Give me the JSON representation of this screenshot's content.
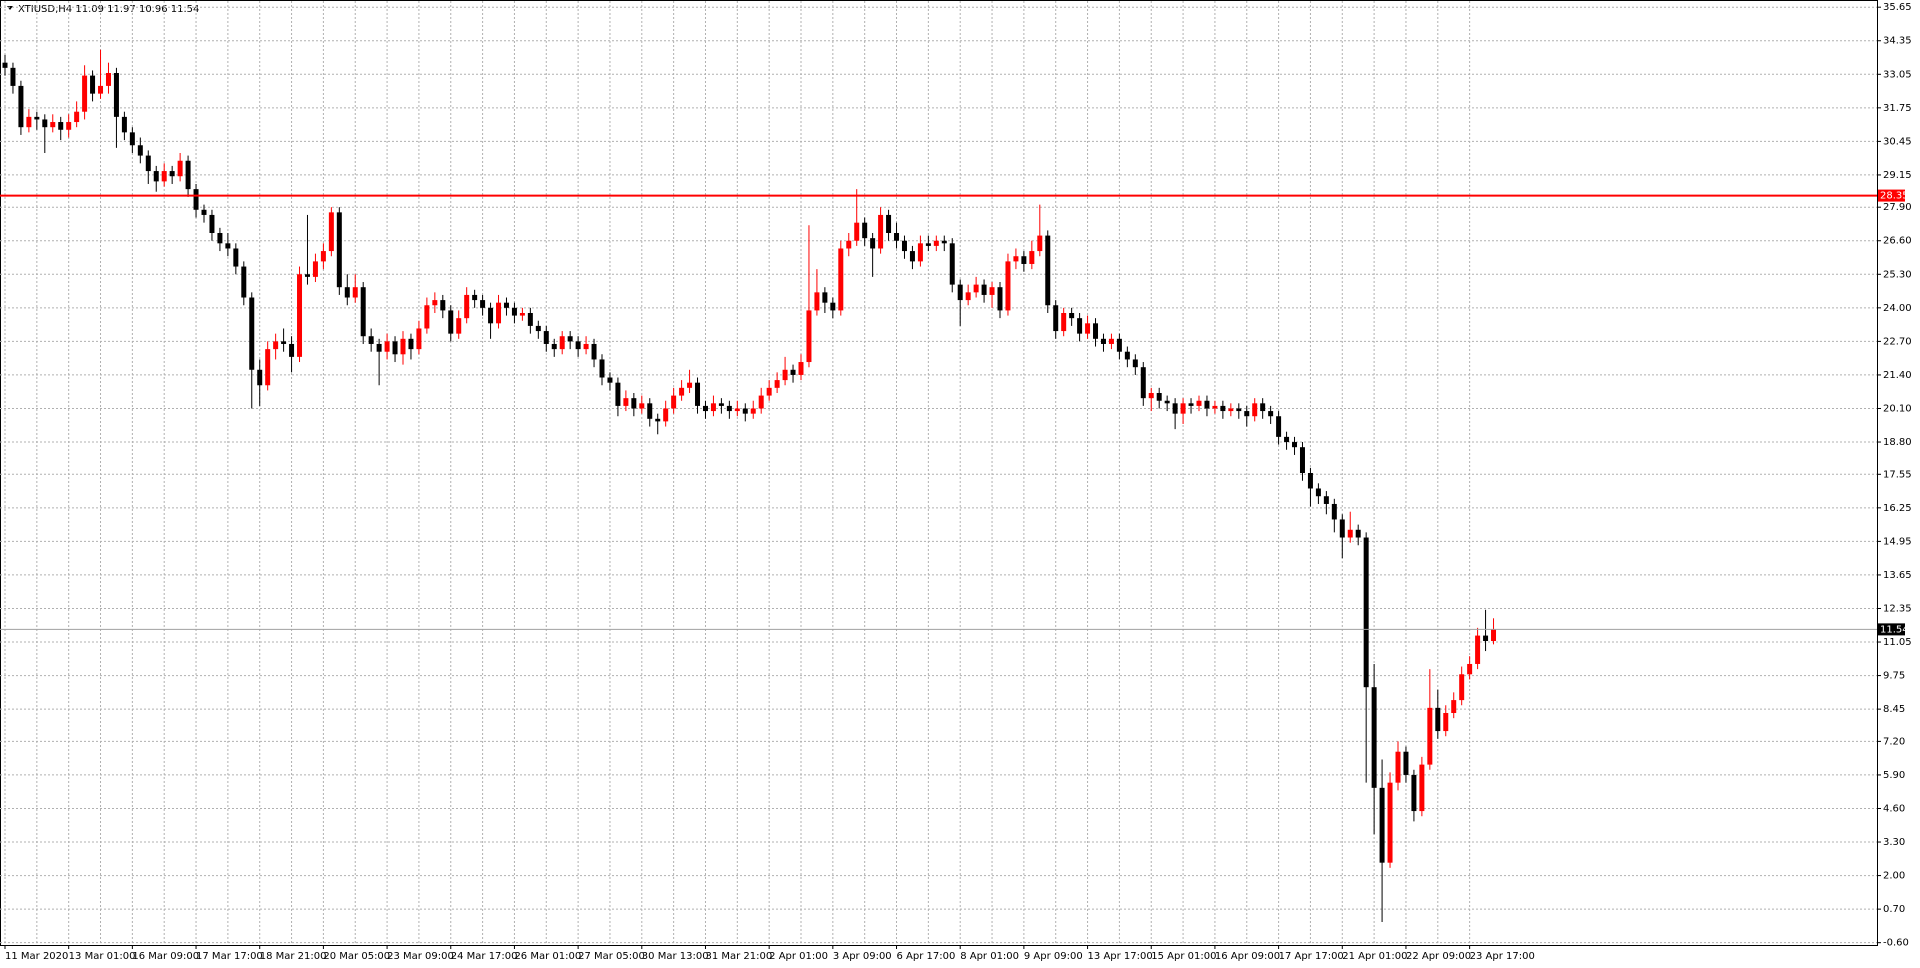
{
  "chart_data": {
    "type": "candlestick",
    "title": "XTIUSD,H4  11.09 11.97 10.96 11.54",
    "ylim": [
      -0.69,
      35.89
    ],
    "yticks": [
      35.65,
      34.35,
      33.05,
      31.75,
      30.45,
      29.15,
      {
        "value": 27.9,
        "label": "27.90"
      },
      {
        "value": 26.6,
        "label": "26.60"
      },
      {
        "value": 25.3,
        "label": "25.30"
      },
      {
        "value": 24,
        "label": "24.00"
      },
      {
        "value": 22.7,
        "label": "22.70"
      },
      {
        "value": 21.4,
        "label": "21.40"
      },
      {
        "value": 20.1,
        "label": "20.10"
      },
      {
        "value": 18.8,
        "label": "18.80"
      },
      17.55,
      16.25,
      14.95,
      13.65,
      12.35,
      11.05,
      9.75,
      8.45,
      {
        "value": 7.2,
        "label": "7.20"
      },
      {
        "value": 5.9,
        "label": "5.90"
      },
      {
        "value": 4.6,
        "label": "4.60"
      },
      {
        "value": 3.3,
        "label": "3.30"
      },
      {
        "value": 2,
        "label": "2.00"
      },
      {
        "value": 0.7,
        "label": "0.70"
      },
      {
        "value": -0.6,
        "label": "-0.60"
      }
    ],
    "grid": true,
    "bull_color": "#ff0000",
    "bear_color": "#000000",
    "doji_color": "#00a000",
    "hlines": [
      {
        "value": 28.35,
        "color": "#ff0000"
      },
      {
        "value": 11.54,
        "color": "#a0a0a0"
      }
    ],
    "categories": [
      "11 Mar 2020",
      null,
      null,
      null,
      null,
      null,
      null,
      null,
      "13 Mar 01:00",
      null,
      null,
      null,
      null,
      null,
      null,
      null,
      "16 Mar 09:00",
      null,
      null,
      null,
      null,
      null,
      null,
      null,
      "17 Mar 17:00",
      null,
      null,
      null,
      null,
      null,
      null,
      null,
      "18 Mar 21:00",
      null,
      null,
      null,
      null,
      null,
      null,
      null,
      "20 Mar 05:00",
      null,
      null,
      null,
      null,
      null,
      null,
      null,
      "23 Mar 09:00",
      null,
      null,
      null,
      null,
      null,
      null,
      null,
      "24 Mar 17:00",
      null,
      null,
      null,
      null,
      null,
      null,
      null,
      "26 Mar 01:00",
      null,
      null,
      null,
      null,
      null,
      null,
      null,
      "27 Mar 05:00",
      null,
      null,
      null,
      null,
      null,
      null,
      null,
      "30 Mar 13:00",
      null,
      null,
      null,
      null,
      null,
      null,
      null,
      "31 Mar 21:00",
      null,
      null,
      null,
      null,
      null,
      null,
      null,
      "2 Apr 01:00",
      null,
      null,
      null,
      null,
      null,
      null,
      null,
      "3 Apr 09:00",
      null,
      null,
      null,
      null,
      null,
      null,
      null,
      "6 Apr 17:00",
      null,
      null,
      null,
      null,
      null,
      null,
      null,
      "8 Apr 01:00",
      null,
      null,
      null,
      null,
      null,
      null,
      null,
      "9 Apr 09:00",
      null,
      null,
      null,
      null,
      null,
      null,
      null,
      "13 Apr 17:00",
      null,
      null,
      null,
      null,
      null,
      null,
      null,
      "15 Apr 01:00",
      null,
      null,
      null,
      null,
      null,
      null,
      null,
      "16 Apr 09:00",
      null,
      null,
      null,
      null,
      null,
      null,
      null,
      "17 Apr 17:00",
      null,
      null,
      null,
      null,
      null,
      null,
      null,
      "21 Apr 01:00",
      null,
      null,
      null,
      null,
      null,
      null,
      null,
      "22 Apr 09:00",
      null,
      null,
      null,
      null,
      null,
      null,
      null,
      "23 Apr 17:00",
      null,
      null,
      null
    ],
    "candles": [
      [
        33.5,
        33.8,
        33.0,
        33.3
      ],
      [
        33.3,
        33.5,
        32.3,
        32.6
      ],
      [
        32.6,
        32.8,
        30.7,
        31.0
      ],
      [
        31.0,
        31.7,
        30.8,
        31.4
      ],
      [
        31.4,
        31.6,
        30.9,
        31.3
      ],
      [
        31.3,
        31.5,
        30.0,
        31.0
      ],
      [
        31.0,
        31.5,
        30.8,
        31.2
      ],
      [
        31.2,
        31.4,
        30.5,
        30.9
      ],
      [
        30.9,
        31.5,
        30.6,
        31.2
      ],
      [
        31.2,
        32.0,
        31.0,
        31.6
      ],
      [
        31.6,
        33.4,
        31.3,
        33.0
      ],
      [
        33.0,
        33.2,
        32.0,
        32.3
      ],
      [
        32.3,
        34.0,
        32.1,
        32.6
      ],
      [
        32.6,
        33.5,
        32.3,
        33.1
      ],
      [
        33.1,
        33.3,
        30.2,
        31.4
      ],
      [
        31.4,
        31.6,
        30.5,
        30.8
      ],
      [
        30.8,
        31.0,
        30.0,
        30.3
      ],
      [
        30.3,
        30.6,
        29.6,
        29.9
      ],
      [
        29.9,
        30.1,
        28.8,
        29.3
      ],
      [
        29.3,
        29.5,
        28.5,
        28.9
      ],
      [
        28.9,
        29.6,
        28.7,
        29.3
      ],
      [
        29.3,
        29.5,
        28.8,
        29.1
      ],
      [
        29.1,
        30.0,
        28.9,
        29.7
      ],
      [
        29.7,
        29.9,
        28.3,
        28.6
      ],
      [
        28.6,
        28.8,
        27.5,
        27.8
      ],
      [
        27.8,
        28.0,
        27.3,
        27.6
      ],
      [
        27.6,
        27.8,
        26.6,
        26.9
      ],
      [
        26.9,
        27.1,
        26.2,
        26.5
      ],
      [
        26.5,
        26.9,
        26.0,
        26.3
      ],
      [
        26.3,
        26.5,
        25.3,
        25.6
      ],
      [
        25.6,
        25.8,
        24.1,
        24.4
      ],
      [
        24.4,
        24.6,
        20.1,
        21.6
      ],
      [
        21.6,
        22.0,
        20.2,
        21.0
      ],
      [
        21.0,
        22.7,
        20.8,
        22.4
      ],
      [
        22.4,
        23.0,
        22.0,
        22.7
      ],
      [
        22.7,
        23.2,
        22.3,
        22.6
      ],
      [
        22.6,
        22.9,
        21.5,
        22.1
      ],
      [
        22.1,
        25.6,
        21.9,
        25.3
      ],
      [
        25.3,
        27.6,
        24.9,
        25.2
      ],
      [
        25.2,
        26.1,
        25.0,
        25.8
      ],
      [
        25.8,
        26.5,
        25.5,
        26.2
      ],
      [
        26.2,
        27.9,
        26.0,
        27.7
      ],
      [
        27.7,
        27.9,
        24.5,
        24.8
      ],
      [
        24.8,
        25.3,
        24.1,
        24.4
      ],
      [
        24.4,
        25.3,
        24.2,
        24.8
      ],
      [
        24.8,
        25.0,
        22.6,
        22.9
      ],
      [
        22.9,
        23.2,
        22.3,
        22.6
      ],
      [
        22.6,
        22.8,
        21.0,
        22.3
      ],
      [
        22.3,
        23.0,
        22.0,
        22.7
      ],
      [
        22.7,
        22.9,
        21.9,
        22.2
      ],
      [
        22.2,
        23.1,
        21.8,
        22.8
      ],
      [
        22.8,
        23.0,
        22.0,
        22.4
      ],
      [
        22.4,
        23.5,
        22.2,
        23.2
      ],
      [
        23.2,
        24.4,
        23.0,
        24.1
      ],
      [
        24.1,
        24.6,
        23.8,
        24.3
      ],
      [
        24.3,
        24.5,
        23.6,
        23.9
      ],
      [
        23.9,
        24.1,
        22.7,
        23.0
      ],
      [
        23.0,
        23.9,
        22.8,
        23.6
      ],
      [
        23.6,
        24.8,
        23.4,
        24.5
      ],
      [
        24.5,
        24.7,
        24.0,
        24.3
      ],
      [
        24.3,
        24.5,
        23.7,
        24.0
      ],
      [
        24.0,
        24.2,
        22.8,
        23.4
      ],
      [
        23.4,
        24.5,
        23.2,
        24.2
      ],
      [
        24.2,
        24.4,
        23.7,
        24.0
      ],
      [
        24.0,
        24.2,
        23.4,
        23.7
      ],
      [
        23.7,
        24.0,
        23.5,
        23.8
      ],
      [
        23.8,
        24.0,
        23.0,
        23.3
      ],
      [
        23.3,
        23.5,
        22.8,
        23.1
      ],
      [
        23.1,
        23.3,
        22.3,
        22.6
      ],
      [
        22.6,
        22.8,
        22.1,
        22.4
      ],
      [
        22.4,
        23.1,
        22.2,
        22.9
      ],
      [
        22.9,
        23.1,
        22.4,
        22.7
      ],
      [
        22.7,
        22.9,
        22.1,
        22.4
      ],
      [
        22.4,
        22.9,
        22.2,
        22.6
      ],
      [
        22.6,
        22.8,
        21.7,
        22.0
      ],
      [
        22.0,
        22.2,
        21.0,
        21.3
      ],
      [
        21.3,
        21.5,
        20.8,
        21.1
      ],
      [
        21.1,
        21.3,
        19.8,
        20.2
      ],
      [
        20.2,
        20.8,
        20.0,
        20.5
      ],
      [
        20.5,
        20.7,
        19.8,
        20.1
      ],
      [
        20.1,
        20.6,
        19.9,
        20.3
      ],
      [
        20.3,
        20.5,
        19.4,
        19.7
      ],
      [
        19.7,
        19.9,
        19.1,
        19.6
      ],
      [
        19.6,
        20.4,
        19.4,
        20.1
      ],
      [
        20.1,
        20.9,
        19.9,
        20.6
      ],
      [
        20.6,
        21.2,
        20.4,
        20.9
      ],
      [
        20.9,
        21.6,
        20.7,
        21.1
      ],
      [
        21.1,
        21.3,
        19.9,
        20.2
      ],
      [
        20.2,
        20.4,
        19.7,
        20.0
      ],
      [
        20.0,
        20.6,
        19.8,
        20.3
      ],
      [
        20.3,
        20.5,
        19.9,
        20.2
      ],
      [
        20.2,
        20.4,
        19.7,
        20.0
      ],
      [
        20.0,
        20.4,
        19.8,
        20.1
      ],
      [
        20.1,
        20.3,
        19.6,
        19.9
      ],
      [
        19.9,
        20.4,
        19.7,
        20.1
      ],
      [
        20.1,
        20.9,
        19.9,
        20.6
      ],
      [
        20.6,
        21.2,
        20.4,
        20.9
      ],
      [
        20.9,
        21.5,
        20.7,
        21.2
      ],
      [
        21.2,
        22.1,
        21.0,
        21.6
      ],
      [
        21.6,
        21.8,
        21.1,
        21.4
      ],
      [
        21.4,
        22.2,
        21.2,
        21.9
      ],
      [
        21.9,
        27.2,
        21.7,
        23.9
      ],
      [
        23.9,
        25.5,
        23.7,
        24.6
      ],
      [
        24.6,
        24.8,
        23.8,
        24.2
      ],
      [
        24.2,
        24.4,
        23.6,
        23.9
      ],
      [
        23.9,
        26.6,
        23.7,
        26.3
      ],
      [
        26.3,
        26.9,
        26.0,
        26.6
      ],
      [
        26.6,
        28.6,
        26.4,
        27.3
      ],
      [
        27.3,
        27.5,
        26.4,
        26.7
      ],
      [
        26.7,
        26.9,
        25.2,
        26.3
      ],
      [
        26.3,
        27.9,
        26.1,
        27.6
      ],
      [
        27.6,
        27.8,
        26.6,
        26.9
      ],
      [
        26.9,
        27.3,
        26.3,
        26.6
      ],
      [
        26.6,
        26.8,
        25.9,
        26.2
      ],
      [
        26.2,
        26.4,
        25.5,
        25.8
      ],
      [
        25.8,
        26.8,
        25.6,
        26.5
      ],
      [
        26.5,
        26.8,
        26.2,
        26.4
      ],
      [
        26.4,
        26.8,
        26.2,
        26.6
      ],
      [
        26.6,
        26.8,
        26.2,
        26.5
      ],
      [
        26.5,
        26.7,
        24.6,
        24.9
      ],
      [
        24.9,
        25.1,
        23.3,
        24.3
      ],
      [
        24.3,
        24.9,
        24.1,
        24.6
      ],
      [
        24.6,
        25.2,
        24.4,
        24.9
      ],
      [
        24.9,
        25.1,
        24.2,
        24.5
      ],
      [
        24.5,
        25.0,
        24.0,
        24.8
      ],
      [
        24.8,
        25.0,
        23.6,
        23.9
      ],
      [
        23.9,
        26.1,
        23.7,
        25.8
      ],
      [
        25.8,
        26.3,
        25.5,
        26.0
      ],
      [
        26.0,
        26.2,
        25.4,
        25.7
      ],
      [
        25.7,
        26.6,
        25.5,
        26.2
      ],
      [
        26.2,
        28.0,
        26.0,
        26.8
      ],
      [
        26.8,
        27.0,
        23.8,
        24.1
      ],
      [
        24.1,
        24.3,
        22.8,
        23.1
      ],
      [
        23.1,
        24.0,
        22.9,
        23.8
      ],
      [
        23.8,
        24.0,
        23.3,
        23.6
      ],
      [
        23.6,
        23.8,
        22.7,
        23.0
      ],
      [
        23.0,
        23.7,
        22.8,
        23.4
      ],
      [
        23.4,
        23.6,
        22.5,
        22.8
      ],
      [
        22.8,
        23.0,
        22.3,
        22.6
      ],
      [
        22.6,
        23.0,
        22.4,
        22.8
      ],
      [
        22.8,
        23.0,
        22.0,
        22.3
      ],
      [
        22.3,
        22.5,
        21.7,
        22.0
      ],
      [
        22.0,
        22.2,
        21.4,
        21.7
      ],
      [
        21.7,
        21.9,
        20.2,
        20.5
      ],
      [
        20.5,
        20.9,
        20.0,
        20.7
      ],
      [
        20.7,
        20.9,
        20.1,
        20.4
      ],
      [
        20.4,
        20.6,
        20.0,
        20.3
      ],
      [
        20.3,
        20.5,
        19.3,
        19.9
      ],
      [
        19.9,
        20.5,
        19.5,
        20.3
      ],
      [
        20.3,
        20.5,
        19.9,
        20.2
      ],
      [
        20.2,
        20.6,
        20.0,
        20.4
      ],
      [
        20.4,
        20.6,
        19.8,
        20.1
      ],
      [
        20.1,
        20.4,
        19.9,
        20.2
      ],
      [
        20.2,
        20.4,
        19.7,
        20.0
      ],
      [
        20.0,
        20.3,
        19.8,
        20.1
      ],
      [
        20.1,
        20.3,
        19.7,
        20.0
      ],
      [
        20.0,
        20.2,
        19.4,
        19.8
      ],
      [
        19.8,
        20.5,
        19.6,
        20.3
      ],
      [
        20.3,
        20.5,
        19.7,
        20.0
      ],
      [
        20.0,
        20.2,
        19.5,
        19.8
      ],
      [
        19.8,
        20.0,
        18.7,
        19.0
      ],
      [
        19.0,
        19.2,
        18.5,
        18.8
      ],
      [
        18.8,
        19.0,
        18.3,
        18.6
      ],
      [
        18.6,
        18.8,
        17.3,
        17.6
      ],
      [
        17.6,
        17.8,
        16.3,
        17.0
      ],
      [
        17.0,
        17.2,
        16.4,
        16.7
      ],
      [
        16.7,
        16.9,
        16.0,
        16.4
      ],
      [
        16.4,
        16.6,
        15.3,
        15.8
      ],
      [
        15.8,
        16.0,
        14.3,
        15.1
      ],
      [
        15.1,
        16.1,
        14.9,
        15.4
      ],
      [
        15.4,
        15.6,
        14.8,
        15.1
      ],
      [
        15.1,
        15.3,
        5.6,
        9.3
      ],
      [
        9.3,
        10.2,
        3.6,
        5.4
      ],
      [
        5.4,
        6.5,
        0.2,
        2.5
      ],
      [
        2.5,
        6.0,
        2.3,
        5.6
      ],
      [
        5.6,
        7.2,
        5.3,
        6.8
      ],
      [
        6.8,
        7.0,
        5.6,
        5.9
      ],
      [
        5.9,
        6.1,
        4.1,
        4.5
      ],
      [
        4.5,
        6.6,
        4.3,
        6.3
      ],
      [
        6.3,
        10.0,
        6.1,
        8.5
      ],
      [
        8.5,
        9.2,
        7.3,
        7.6
      ],
      [
        7.6,
        8.6,
        7.4,
        8.3
      ],
      [
        8.3,
        9.1,
        8.1,
        8.8
      ],
      [
        8.8,
        10.1,
        8.6,
        9.8
      ],
      [
        9.8,
        10.5,
        9.6,
        10.2
      ],
      [
        10.2,
        11.6,
        10.0,
        11.3
      ],
      [
        11.3,
        12.3,
        10.7,
        11.09
      ],
      [
        11.09,
        11.97,
        10.96,
        11.54
      ]
    ]
  }
}
